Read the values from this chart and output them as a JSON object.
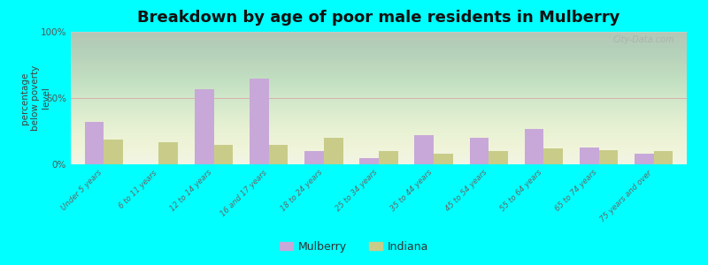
{
  "title": "Breakdown by age of poor male residents in Mulberry",
  "ylabel": "percentage\nbelow poverty\nlevel",
  "categories": [
    "Under 5 years",
    "6 to 11 years",
    "12 to 14 years",
    "16 and 17 years",
    "18 to 24 years",
    "25 to 34 years",
    "35 to 44 years",
    "45 to 54 years",
    "55 to 64 years",
    "65 to 74 years",
    "75 years and over"
  ],
  "mulberry_values": [
    32,
    0,
    57,
    65,
    10,
    5,
    22,
    20,
    27,
    13,
    8
  ],
  "indiana_values": [
    19,
    17,
    15,
    15,
    20,
    10,
    8,
    10,
    12,
    11,
    10
  ],
  "mulberry_color": "#c8a8d8",
  "indiana_color": "#c8cc88",
  "background_color": "#00ffff",
  "plot_bg_color": "#eef2e4",
  "ylim": [
    0,
    100
  ],
  "yticks": [
    0,
    50,
    100
  ],
  "ytick_labels": [
    "0%",
    "50%",
    "100%"
  ],
  "bar_width": 0.35,
  "title_fontsize": 13,
  "label_fontsize": 7.5,
  "ylabel_fontsize": 7.5,
  "legend_labels": [
    "Mulberry",
    "Indiana"
  ],
  "watermark": "City-Data.com"
}
